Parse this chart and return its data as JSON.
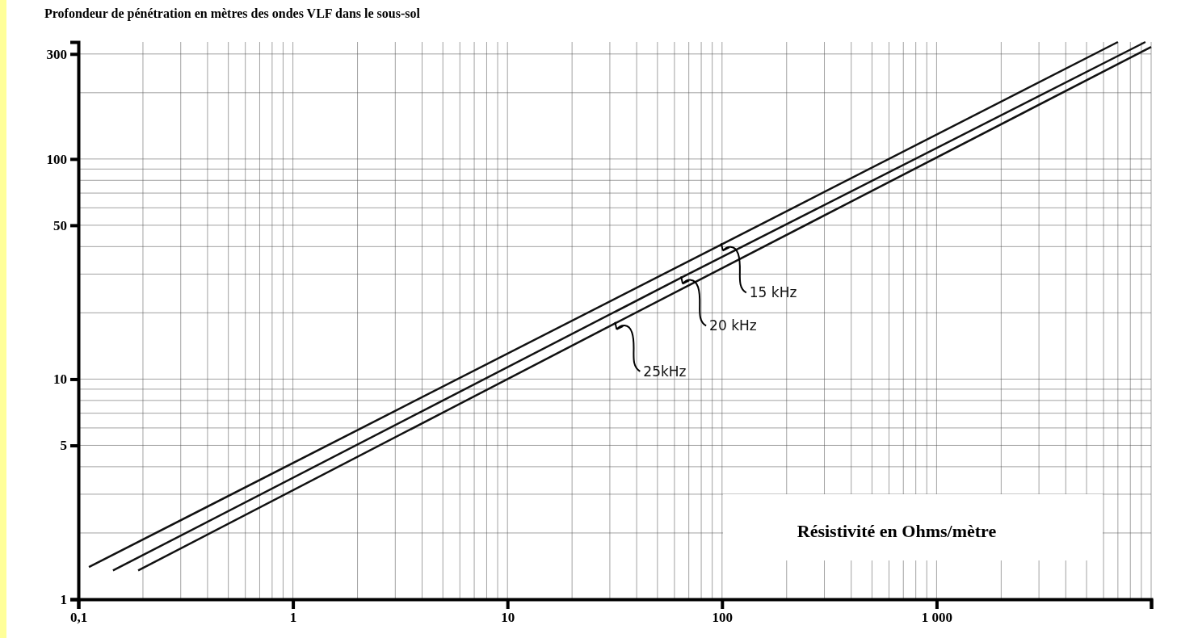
{
  "chart_data": {
    "type": "line",
    "title": "Profondeur de pénétration en mètres des ondes VLF dans le sous-sol",
    "xlabel": "Résistivité en Ohms/mètre",
    "log": "xy",
    "grid": true,
    "marker": "none",
    "line_style": "solid",
    "xlim": [
      0.1,
      10000
    ],
    "xticks": [
      {
        "value": 0.1,
        "label": "0,1"
      },
      1,
      10,
      100,
      {
        "value": 1000,
        "label": "1 000"
      },
      {
        "value": 10000,
        "label": null
      }
    ],
    "ylim": [
      1,
      340
    ],
    "yticks": [
      1,
      5,
      10,
      50,
      100,
      300
    ],
    "series": [
      {
        "color": "#111111",
        "x": [
          0.112,
          100,
          7000
        ],
        "values": [
          1.4,
          41,
          340
        ]
      },
      {
        "color": "#111111",
        "x": [
          0.145,
          65,
          9400
        ],
        "values": [
          1.35,
          29,
          340
        ]
      },
      {
        "color": "#111111",
        "x": [
          0.19,
          32,
          10000
        ],
        "values": [
          1.35,
          18,
          323
        ]
      }
    ],
    "annotations": [
      {
        "text": "15 kHz",
        "x": 100,
        "y": 41
      },
      {
        "text": "20 kHz",
        "x": 65,
        "y": 29
      },
      {
        "text": "25kHz",
        "x": 32,
        "y": 18
      }
    ]
  }
}
